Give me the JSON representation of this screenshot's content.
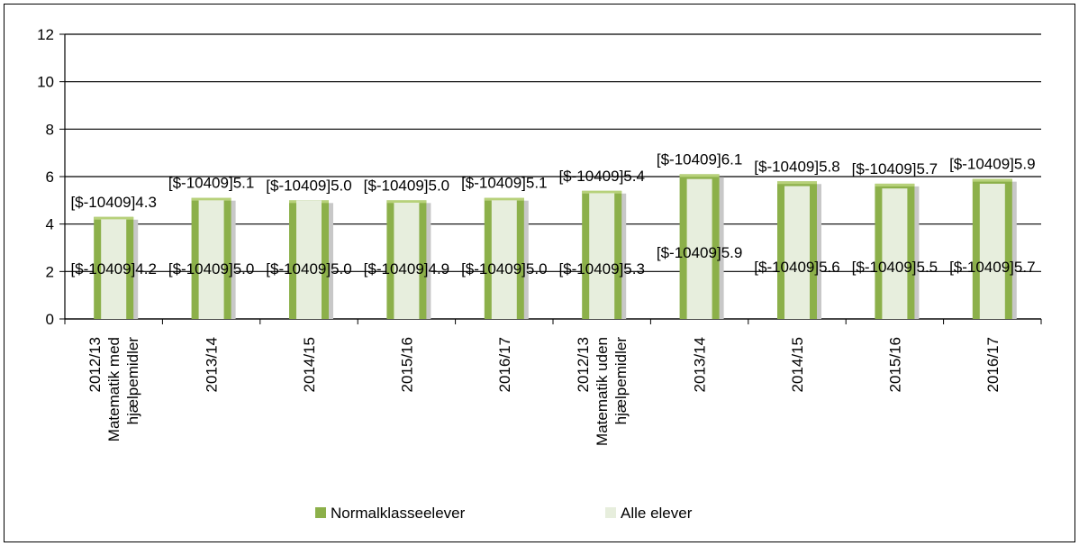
{
  "chart_data": {
    "type": "bar",
    "categories": [
      [
        "2012/13",
        "Matematik med",
        "hjælpemidler"
      ],
      [
        "2013/14"
      ],
      [
        "2014/15"
      ],
      [
        "2015/16"
      ],
      [
        "2016/17"
      ],
      [
        "2012/13",
        "Matematik uden",
        "hjælpemidler"
      ],
      [
        "2013/14"
      ],
      [
        "2014/15"
      ],
      [
        "2015/16"
      ],
      [
        "2016/17"
      ]
    ],
    "series": [
      {
        "name": "Normalklasseelever",
        "color": "#8cb04a",
        "values": [
          4.3,
          5.1,
          5.0,
          5.0,
          5.1,
          5.4,
          6.1,
          5.8,
          5.7,
          5.9
        ],
        "labels": [
          "[$-10409]4.3",
          "[$-10409]5.1",
          "[$-10409]5.0",
          "[$-10409]5.0",
          "[$-10409]5.1",
          "[$-10409]5.4",
          "[$-10409]6.1",
          "[$-10409]5.8",
          "[$-10409]5.7",
          "[$-10409]5.9"
        ]
      },
      {
        "name": "Alle elever",
        "color": "#e7eedd",
        "values": [
          4.2,
          5.0,
          5.0,
          4.9,
          5.0,
          5.3,
          5.9,
          5.6,
          5.5,
          5.7
        ],
        "labels": [
          "[$-10409]4.2",
          "[$-10409]5.0",
          "[$-10409]5.0",
          "[$-10409]4.9",
          "[$-10409]5.0",
          "[$-10409]5.3",
          "[$-10409]5.9",
          "[$-10409]5.6",
          "[$-10409]5.5",
          "[$-10409]5.7"
        ]
      }
    ],
    "yticks": [
      "0",
      "2",
      "4",
      "6",
      "8",
      "10",
      "12"
    ],
    "ylim": [
      0,
      12
    ],
    "grid": true,
    "legend_position": "bottom"
  }
}
